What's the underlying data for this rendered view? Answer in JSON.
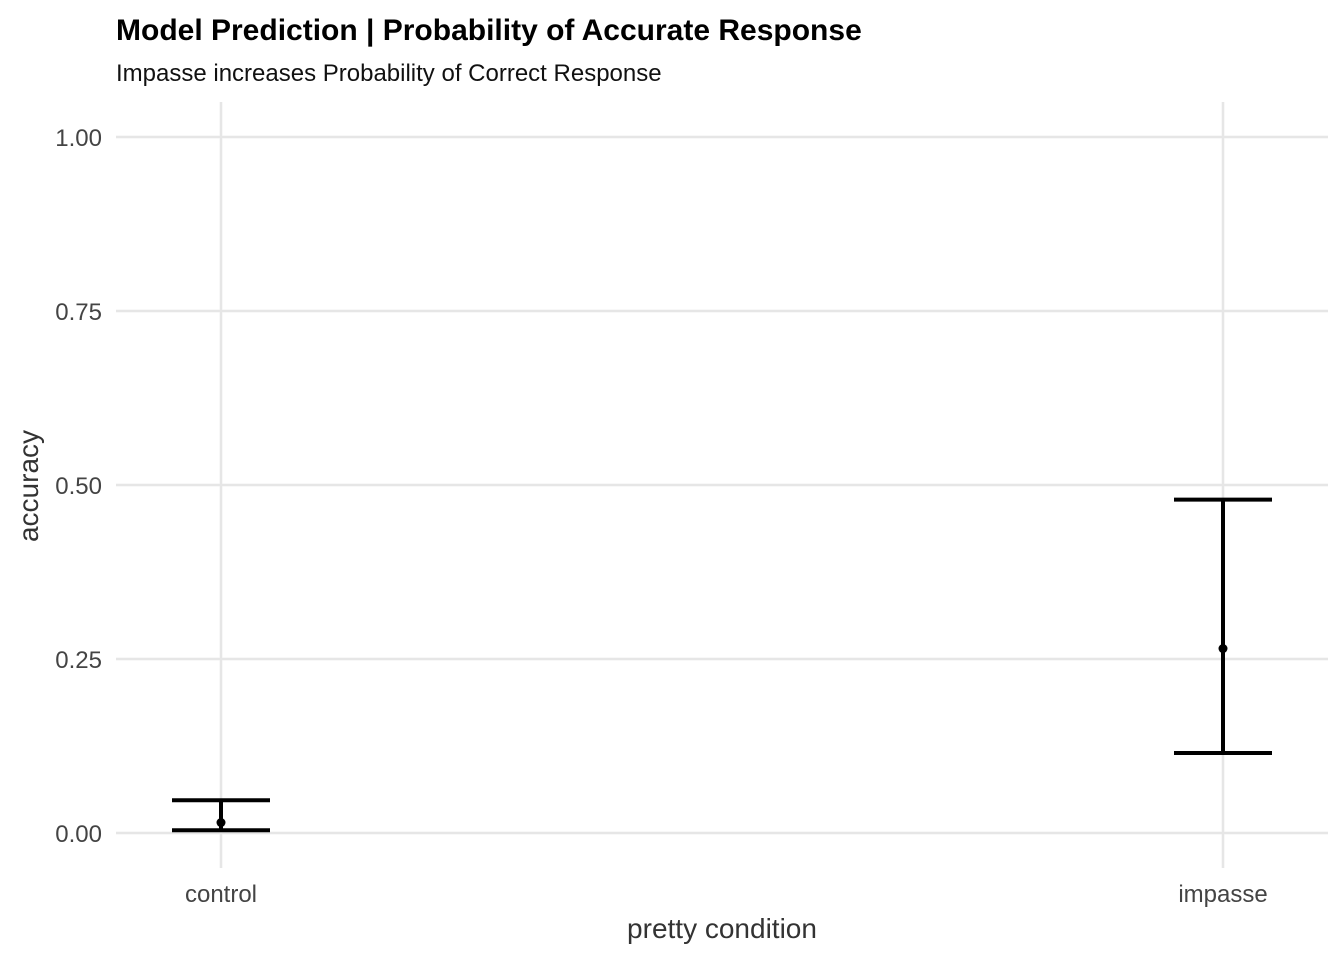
{
  "chart_data": {
    "type": "errorbar",
    "title": "Model Prediction | Probability of Accurate Response",
    "subtitle": "Impasse increases Probability of Correct Response",
    "xlabel": "pretty condition",
    "ylabel": "accuracy",
    "categories": [
      "control",
      "impasse"
    ],
    "values": [
      0.015,
      0.265
    ],
    "lower": [
      0.004,
      0.115
    ],
    "upper": [
      0.047,
      0.479
    ],
    "ylim": [
      0,
      1
    ],
    "yticks": [
      "0.00",
      "0.25",
      "0.50",
      "0.75",
      "1.00"
    ],
    "ytick_values": [
      0,
      0.25,
      0.5,
      0.75,
      1.0
    ],
    "grid": true,
    "legend": "none"
  }
}
